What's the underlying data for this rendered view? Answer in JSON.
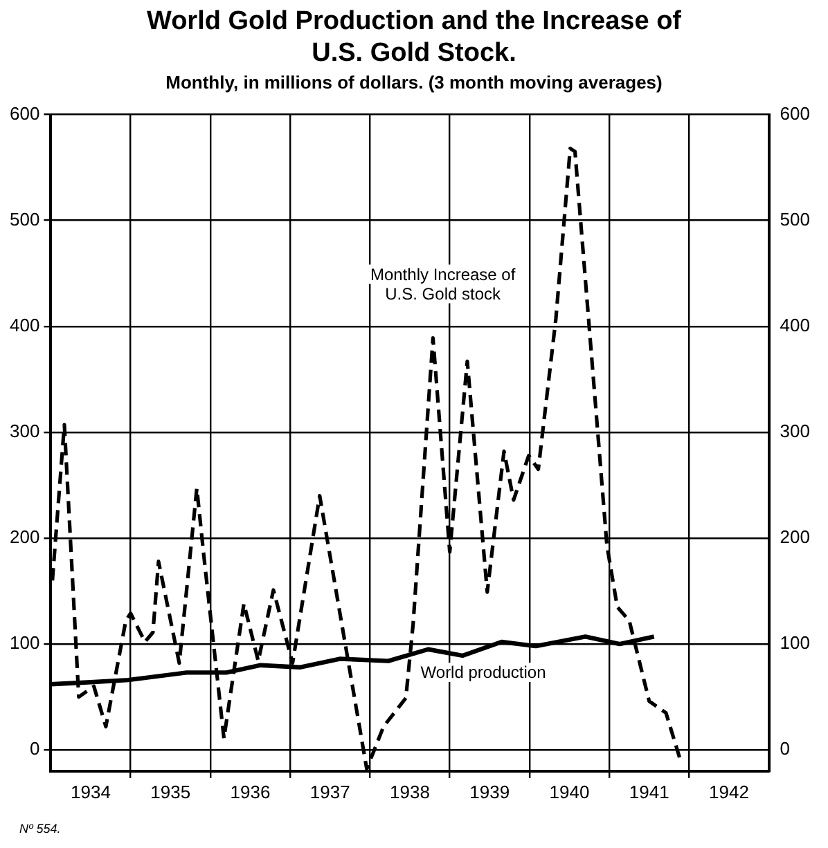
{
  "chart_data": {
    "type": "line",
    "title": "World Gold Production and the Increase of U.S. Gold Stock.",
    "subtitle": "Monthly, in millions of dollars. (3 month moving averages)",
    "annotations": [
      "Nº 554."
    ],
    "xlim": [
      1934,
      1943
    ],
    "xticks": [
      {
        "value": 1934.5,
        "label": "1934"
      },
      {
        "value": 1935,
        "label": null
      },
      {
        "value": 1935.5,
        "label": "1935"
      },
      {
        "value": 1936,
        "label": null
      },
      {
        "value": 1936.5,
        "label": "1936"
      },
      {
        "value": 1937,
        "label": null
      },
      {
        "value": 1937.5,
        "label": "1937"
      },
      {
        "value": 1938,
        "label": null
      },
      {
        "value": 1938.5,
        "label": "1938"
      },
      {
        "value": 1939,
        "label": null
      },
      {
        "value": 1939.5,
        "label": "1939"
      },
      {
        "value": 1940,
        "label": null
      },
      {
        "value": 1940.5,
        "label": "1940"
      },
      {
        "value": 1941,
        "label": null
      },
      {
        "value": 1941.5,
        "label": "1941"
      },
      {
        "value": 1942,
        "label": null
      },
      {
        "value": 1942.5,
        "label": "1942"
      }
    ],
    "ylim": [
      -20,
      600
    ],
    "yticks": [
      0,
      100,
      200,
      300,
      400,
      500,
      600
    ],
    "y2lim": [
      -20,
      600
    ],
    "y2ticks": [
      0,
      100,
      200,
      300,
      400,
      500,
      600
    ],
    "grid": true,
    "legend": false,
    "marker": "none",
    "series": [
      {
        "name": "Monthly Increase of U.S. Gold stock",
        "color": "#000000",
        "line_style": "dashed",
        "x": [
          1934.02,
          1934.17,
          1934.35,
          1934.54,
          1934.69,
          1934.94,
          1935.0,
          1935.18,
          1935.28,
          1935.35,
          1935.61,
          1935.83,
          1935.92,
          1936.17,
          1936.42,
          1936.6,
          1936.79,
          1937.03,
          1937.37,
          1937.96,
          1938.17,
          1938.45,
          1938.54,
          1938.79,
          1939.0,
          1939.22,
          1939.47,
          1939.68,
          1939.8,
          1939.99,
          1940.11,
          1940.33,
          1940.51,
          1940.57,
          1940.97,
          1941.1,
          1941.25,
          1941.5,
          1941.71,
          1941.9
        ],
        "values": [
          160,
          307,
          50,
          60,
          22,
          122,
          129,
          102,
          111,
          178,
          82,
          247,
          182,
          11,
          138,
          84,
          151,
          82,
          240,
          -18,
          22,
          49,
          118,
          389,
          187,
          367,
          149,
          282,
          236,
          278,
          265,
          407,
          568,
          565,
          193,
          135,
          122,
          46,
          35,
          -12
        ]
      },
      {
        "name": "World production",
        "color": "#000000",
        "line_style": "solid",
        "x": [
          1934.0,
          1934.5,
          1934.97,
          1935.7,
          1936.2,
          1936.63,
          1937.12,
          1937.62,
          1938.23,
          1938.73,
          1939.16,
          1939.65,
          1940.08,
          1940.7,
          1941.13,
          1941.56
        ],
        "values": [
          62,
          64,
          66,
          73,
          73,
          80,
          78,
          86,
          84,
          95,
          89,
          102,
          98,
          107,
          100,
          107
        ]
      }
    ]
  }
}
